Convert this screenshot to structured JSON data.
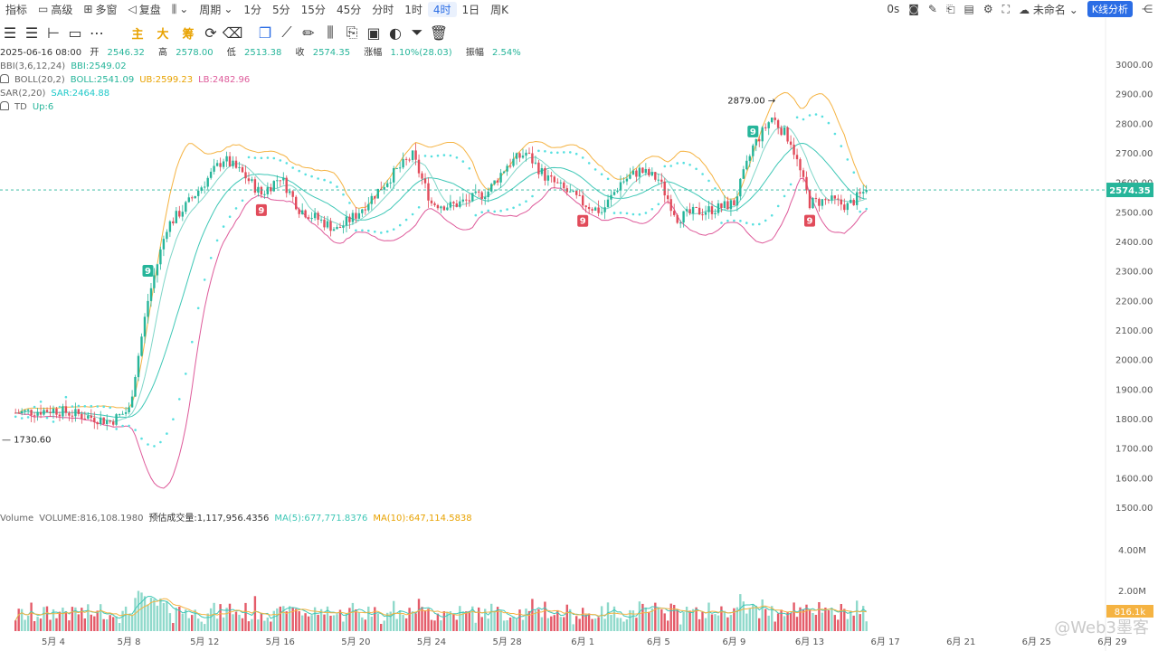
{
  "toolbar": {
    "items": [
      "指标",
      "高级",
      "多窗",
      "复盘"
    ],
    "period_label": "周期",
    "timeframes": [
      "1分",
      "5分",
      "15分",
      "45分",
      "分时",
      "1时",
      "4时",
      "1日",
      "周K"
    ],
    "active_timeframe": "4时",
    "right": {
      "countdown": "0s",
      "layout_name": "未命名",
      "kline_btn": "K线分析"
    }
  },
  "formula_tags": [
    "主",
    "大",
    "筹"
  ],
  "ohlc": {
    "date": "2025-06-16 08:00",
    "open_label": "开",
    "open": "2546.32",
    "high_label": "高",
    "high": "2578.00",
    "low_label": "低",
    "low": "2513.38",
    "close_label": "收",
    "close": "2574.35",
    "change_label": "涨幅",
    "change": "1.10%(28.03)",
    "amp_label": "振幅",
    "amp": "2.54%"
  },
  "indicators": {
    "bbi_name": "BBI(3,6,12,24)",
    "bbi_val": "BBI:2549.02",
    "boll_name": "BOLL(20,2)",
    "boll_val": "BOLL:2541.09",
    "ub_val": "UB:2599.23",
    "lb_val": "LB:2482.96",
    "sar_name": "SAR(2,20)",
    "sar_val": "SAR:2464.88",
    "td_name": "TD",
    "td_val": "Up:6"
  },
  "volume_legend": {
    "name": "Volume",
    "volume": "VOLUME:816,108.1980",
    "est": "预估成交量:1,117,956.4356",
    "ma5": "MA(5):677,771.8376",
    "ma10": "MA(10):647,114.5838"
  },
  "colors": {
    "up": "#26b59a",
    "down": "#e14b5a",
    "ma5": "#3ec7b6",
    "ma10": "#f5b342",
    "boll_mid": "#3ec7b6",
    "boll_ub": "#f5b342",
    "boll_lb": "#de5a9a",
    "sar": "#58e0e0",
    "accent": "#2b6de5"
  },
  "watermark": "@Web3墨客",
  "chart_data": {
    "type": "candlestick",
    "price_axis": {
      "range": [
        1500,
        3000
      ],
      "ticks": [
        "3000.00",
        "2900.00",
        "2800.00",
        "2700.00",
        "2600.00",
        "2500.00",
        "2400.00",
        "2300.00",
        "2200.00",
        "2100.00",
        "2000.00",
        "1900.00",
        "1800.00",
        "1700.00",
        "1600.00",
        "1500.00"
      ]
    },
    "volume_axis": {
      "range": [
        0,
        4800000
      ],
      "ticks": [
        "4.00M",
        "2.00M"
      ]
    },
    "current_price": "2574.35",
    "current_volume": "816.1k",
    "x_ticks": [
      "5月 4",
      "5月 8",
      "5月 12",
      "5月 16",
      "5月 20",
      "5月 24",
      "5月 28",
      "6月 1",
      "6月 5",
      "6月 9",
      "6月 13",
      "6月 17",
      "6月 21",
      "6月 25",
      "6月 29"
    ],
    "date_range": [
      "2025-05-02",
      "2025-06-16"
    ],
    "annotations": [
      {
        "text": "2879.00",
        "price": 2879,
        "kind": "high"
      },
      {
        "text": "1730.60",
        "price": 1730.6,
        "kind": "low"
      }
    ],
    "td_signals": [
      {
        "label": "9",
        "date": "2025-05-09",
        "type": "up"
      },
      {
        "label": "9",
        "date": "2025-05-15",
        "type": "down"
      },
      {
        "label": "9",
        "date": "2025-06-01",
        "type": "down"
      },
      {
        "label": "9",
        "date": "2025-06-10",
        "type": "up"
      },
      {
        "label": "9",
        "date": "2025-06-13",
        "type": "down"
      }
    ],
    "close_path": [
      [
        "2025-05-02",
        1820
      ],
      [
        "2025-05-04",
        1830
      ],
      [
        "2025-05-06",
        1805
      ],
      [
        "2025-05-07",
        1790
      ],
      [
        "2025-05-08",
        1830
      ],
      [
        "2025-05-09",
        2200
      ],
      [
        "2025-05-10",
        2450
      ],
      [
        "2025-05-11",
        2520
      ],
      [
        "2025-05-13",
        2680
      ],
      [
        "2025-05-14",
        2630
      ],
      [
        "2025-05-15",
        2560
      ],
      [
        "2025-05-16",
        2620
      ],
      [
        "2025-05-17",
        2510
      ],
      [
        "2025-05-19",
        2440
      ],
      [
        "2025-05-20",
        2490
      ],
      [
        "2025-05-21",
        2560
      ],
      [
        "2025-05-22",
        2630
      ],
      [
        "2025-05-23",
        2690
      ],
      [
        "2025-05-24",
        2530
      ],
      [
        "2025-05-25",
        2520
      ],
      [
        "2025-05-26",
        2540
      ],
      [
        "2025-05-27",
        2570
      ],
      [
        "2025-05-28",
        2660
      ],
      [
        "2025-05-29",
        2700
      ],
      [
        "2025-05-30",
        2620
      ],
      [
        "2025-06-01",
        2530
      ],
      [
        "2025-06-02",
        2500
      ],
      [
        "2025-06-03",
        2600
      ],
      [
        "2025-06-04",
        2640
      ],
      [
        "2025-06-05",
        2610
      ],
      [
        "2025-06-06",
        2480
      ],
      [
        "2025-06-07",
        2500
      ],
      [
        "2025-06-08",
        2510
      ],
      [
        "2025-06-09",
        2530
      ],
      [
        "2025-06-10",
        2720
      ],
      [
        "2025-06-11",
        2820
      ],
      [
        "2025-06-12",
        2740
      ],
      [
        "2025-06-13",
        2530
      ],
      [
        "2025-06-14",
        2540
      ],
      [
        "2025-06-15",
        2520
      ],
      [
        "2025-06-16",
        2574.35
      ]
    ]
  }
}
